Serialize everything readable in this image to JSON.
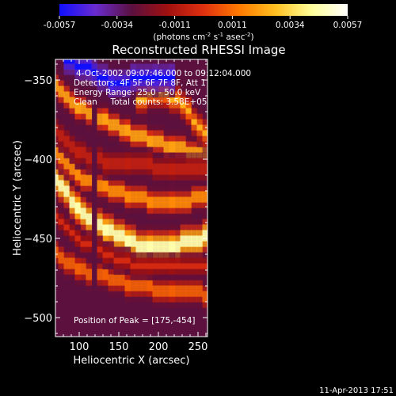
{
  "colorbar": {
    "ticks": [
      "-0.0057",
      "-0.0034",
      "-0.0011",
      "0.0011",
      "0.0034",
      "0.0057"
    ],
    "units_text": "(photons cm",
    "units_exp1": "-2",
    "units_mid": " s",
    "units_exp2": "-1",
    "units_mid2": " asec",
    "units_exp3": "-2",
    "units_close": ")",
    "min": -0.0057,
    "max": 0.0057,
    "colors": [
      "#1010ff",
      "#6a2bcf",
      "#5a1040",
      "#a01010",
      "#e03010",
      "#ff7a00",
      "#ffc020",
      "#ffff9a",
      "#ffffff"
    ]
  },
  "chart_data": {
    "type": "heatmap",
    "title": "Reconstructed RHESSI Image",
    "xlabel": "Heliocentric X (arcsec)",
    "ylabel": "Heliocentric Y (arcsec)",
    "xlim": [
      70,
      262
    ],
    "ylim": [
      -512,
      -337
    ],
    "xticks": [
      100,
      150,
      200,
      250
    ],
    "yticks": [
      -500,
      -450,
      -400,
      -350
    ],
    "peak": [
      175,
      -454
    ],
    "annotations": {
      "time": "4-Oct-2002 09:07:46.000 to 09:12:04.000",
      "detectors": "Detectors: 4F 5F 6F 7F 8F, Att 1",
      "energy": "Energy Range: 25.0 - 50.0 keV",
      "clean": "Clean     Total counts: 3.58E+05",
      "peak_label": "Position of Peak = [175,-454]"
    },
    "bands": [
      {
        "name": "bright-band",
        "points": [
          [
            70,
            -413
          ],
          [
            100,
            -430
          ],
          [
            130,
            -444
          ],
          [
            160,
            -451
          ],
          [
            190,
            -456
          ],
          [
            220,
            -455
          ],
          [
            262,
            -449
          ]
        ],
        "intensity": 0.0057,
        "width": 7
      },
      {
        "name": "red-band-2",
        "points": [
          [
            70,
            -397
          ],
          [
            100,
            -410
          ],
          [
            130,
            -418
          ],
          [
            160,
            -422
          ],
          [
            190,
            -426
          ],
          [
            220,
            -427
          ],
          [
            262,
            -424
          ]
        ],
        "intensity": 0.0028,
        "width": 5
      },
      {
        "name": "red-band-1",
        "points": [
          [
            70,
            -352
          ],
          [
            100,
            -366
          ],
          [
            130,
            -376
          ],
          [
            160,
            -382
          ],
          [
            190,
            -388
          ],
          [
            220,
            -392
          ],
          [
            262,
            -397
          ]
        ],
        "intensity": 0.0034,
        "width": 5
      },
      {
        "name": "red-band-3",
        "points": [
          [
            70,
            -460
          ],
          [
            100,
            -468
          ],
          [
            130,
            -474
          ],
          [
            160,
            -478
          ],
          [
            190,
            -481
          ],
          [
            220,
            -483
          ],
          [
            262,
            -485
          ]
        ],
        "intensity": 0.0018,
        "width": 5
      },
      {
        "name": "red-upper-right",
        "points": [
          [
            175,
            -362
          ],
          [
            210,
            -358
          ],
          [
            240,
            -370
          ],
          [
            262,
            -385
          ]
        ],
        "intensity": 0.0025,
        "width": 6
      },
      {
        "name": "dark-band-1",
        "points": [
          [
            70,
            -380
          ],
          [
            100,
            -394
          ],
          [
            130,
            -401
          ],
          [
            160,
            -404
          ],
          [
            190,
            -404
          ],
          [
            220,
            -406
          ],
          [
            262,
            -407
          ]
        ],
        "intensity": -0.0002,
        "width": 5
      },
      {
        "name": "dark-band-2",
        "points": [
          [
            70,
            -437
          ],
          [
            100,
            -450
          ],
          [
            130,
            -460
          ],
          [
            160,
            -465
          ],
          [
            190,
            -468
          ],
          [
            220,
            -469
          ],
          [
            262,
            -467
          ]
        ],
        "intensity": -0.0003,
        "width": 4
      },
      {
        "name": "blue-top",
        "points": [
          [
            85,
            -338
          ],
          [
            110,
            -343
          ],
          [
            140,
            -352
          ],
          [
            170,
            -350
          ],
          [
            195,
            -347
          ],
          [
            220,
            -350
          ]
        ],
        "intensity": -0.0057,
        "width": 6
      }
    ],
    "background": -0.0028
  },
  "footer": {
    "timestamp": "11-Apr-2013 17:51"
  }
}
